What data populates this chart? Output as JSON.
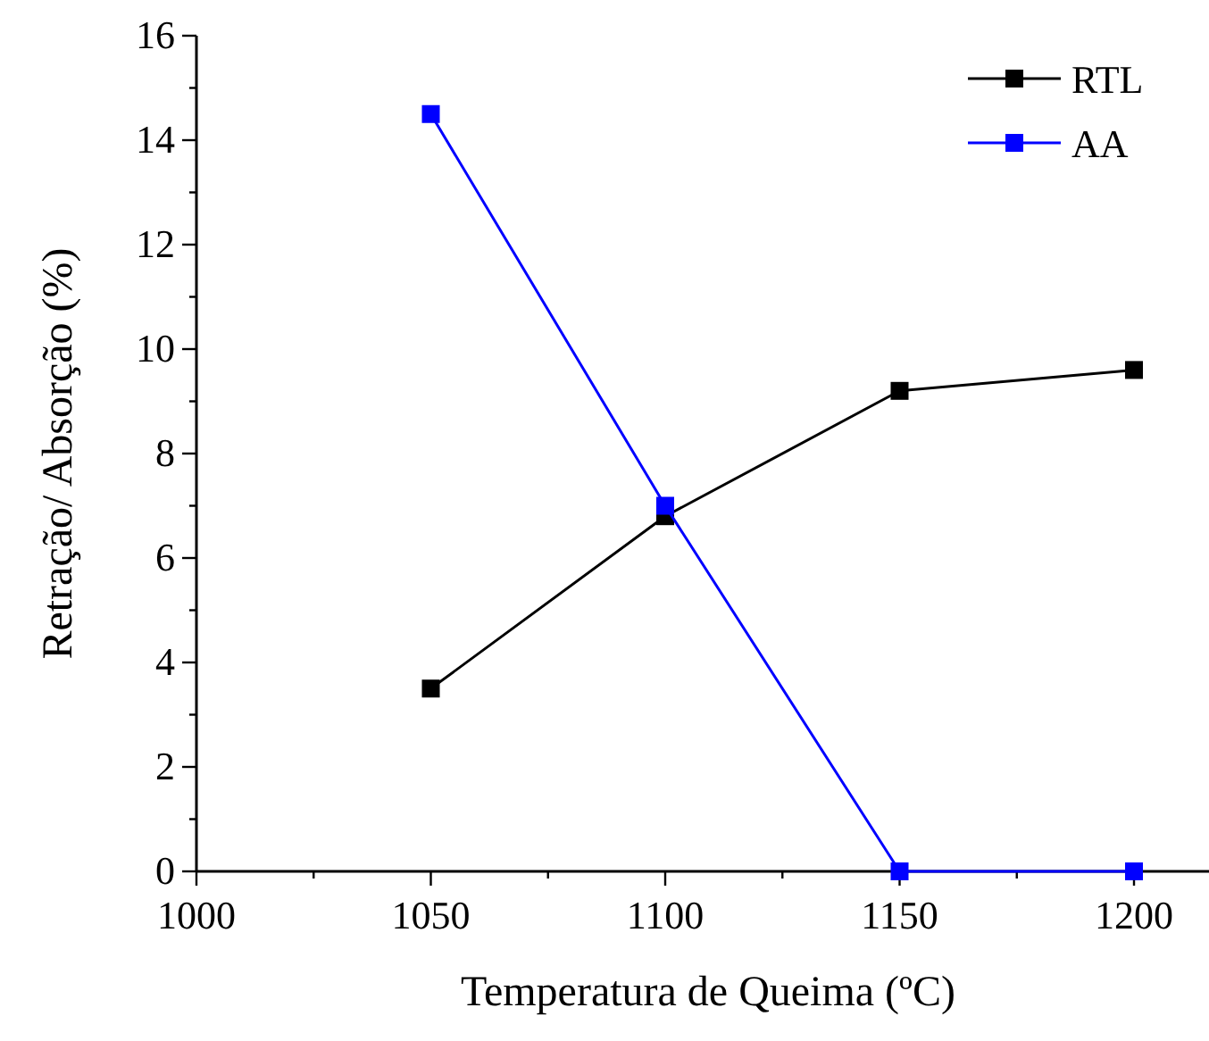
{
  "chart_data": {
    "type": "line",
    "xlabel": "Temperatura de Queima (ºC)",
    "ylabel": "Retração/ Absorção (%)",
    "x": [
      1050,
      1100,
      1150,
      1200
    ],
    "series": [
      {
        "name": "RTL",
        "color": "#000000",
        "values": [
          3.5,
          6.8,
          9.2,
          9.6
        ]
      },
      {
        "name": "AA",
        "color": "#0000ff",
        "values": [
          14.5,
          7.0,
          0,
          0
        ]
      }
    ],
    "xlim": [
      1000,
      1216
    ],
    "ylim": [
      0,
      16
    ],
    "xticks": [
      1000,
      {
        "value": 1025,
        "label": null
      },
      1050,
      {
        "value": 1075,
        "label": null
      },
      1100,
      {
        "value": 1125,
        "label": null
      },
      1150,
      {
        "value": 1175,
        "label": null
      },
      1200
    ],
    "yticks": [
      0,
      {
        "value": 1,
        "label": null
      },
      2,
      {
        "value": 3,
        "label": null
      },
      4,
      {
        "value": 5,
        "label": null
      },
      6,
      {
        "value": 7,
        "label": null
      },
      8,
      {
        "value": 9,
        "label": null
      },
      10,
      {
        "value": 11,
        "label": null
      },
      12,
      {
        "value": 13,
        "label": null
      },
      14,
      {
        "value": 15,
        "label": null
      },
      16
    ],
    "marker": "square",
    "line_style": "solid",
    "legend": "top right",
    "grid": false
  }
}
